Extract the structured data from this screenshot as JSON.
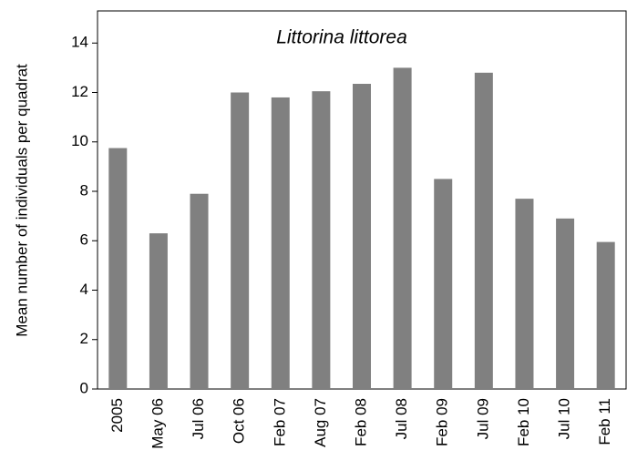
{
  "chart_data": {
    "type": "bar",
    "title": "Littorina littorea",
    "y_label": "Mean number of individuals per quadrat",
    "categories": [
      "2005",
      "May 06",
      "Jul 06",
      "Oct 06",
      "Feb 07",
      "Aug 07",
      "Feb 08",
      "Jul 08",
      "Feb 09",
      "Jul 09",
      "Feb 10",
      "Jul 10",
      "Feb 11"
    ],
    "values": [
      9.75,
      6.3,
      7.9,
      12.0,
      11.8,
      12.05,
      12.35,
      13.0,
      8.5,
      12.8,
      7.7,
      6.9,
      5.95
    ],
    "color": "#808080",
    "ylim": [
      0,
      15.3
    ],
    "yticks": [
      0,
      2,
      4,
      6,
      8,
      10,
      12,
      14
    ],
    "grid": false
  }
}
